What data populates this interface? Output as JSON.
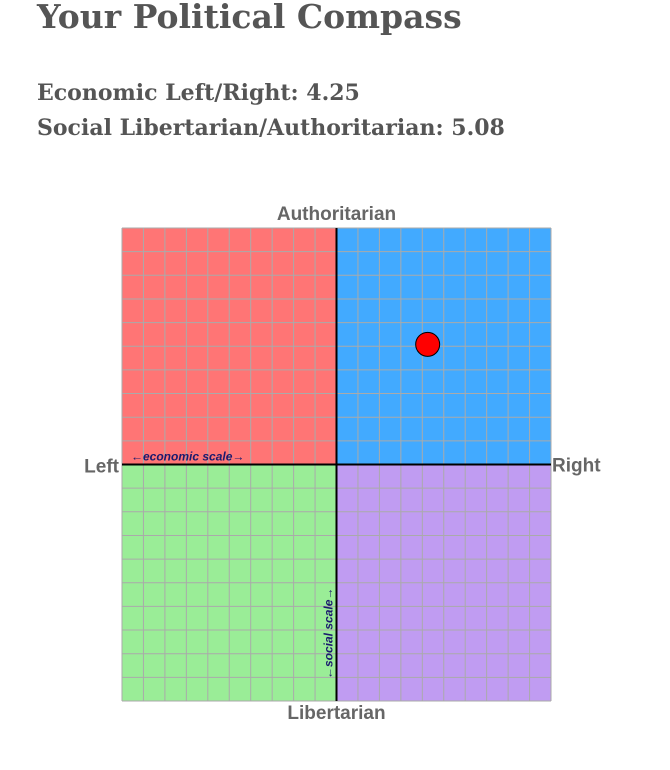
{
  "chart_data": {
    "type": "scatter",
    "title": "Your Political Compass",
    "readouts": [
      "Economic Left/Right: 4.25",
      "Social Libertarian/Authoritarian: 5.08"
    ],
    "x": [
      4.25
    ],
    "y": [
      5.08
    ],
    "color": "#ff0000",
    "xlim": [
      -10,
      10
    ],
    "ylim": [
      -10,
      10
    ],
    "grid": true,
    "quadrant_colors": [
      "#ff7575",
      "#42aaff",
      "#9aed97",
      "#c09cf2"
    ],
    "axis_labels": {
      "top": "Authoritarian",
      "bottom": "Libertarian",
      "left": "Left",
      "right": "Right"
    },
    "xlabel": "←economic scale→",
    "ylabel": "←social scale→"
  }
}
